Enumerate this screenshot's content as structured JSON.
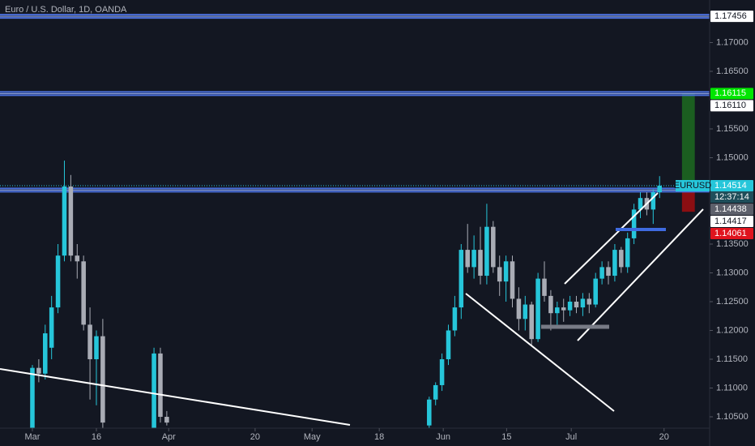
{
  "chart_data": {
    "type": "candlestick",
    "title": "Euro / U.S. Dollar, 1D, OANDA",
    "up_color": "#26c6da",
    "down_color": "#a9acb5",
    "x": [
      0,
      1,
      2,
      3,
      4,
      5,
      6,
      7,
      8,
      9,
      10,
      11,
      19,
      20,
      21,
      62,
      63,
      64,
      65,
      66,
      67,
      68,
      69,
      70,
      71,
      72,
      73,
      74,
      75,
      76,
      77,
      78,
      79,
      80,
      81,
      82,
      83,
      84,
      85,
      86,
      87,
      88,
      89,
      90,
      91,
      92,
      93,
      94,
      95,
      96,
      97,
      98
    ],
    "open": [
      1.103,
      1.1135,
      1.1125,
      1.117,
      1.124,
      1.133,
      1.145,
      1.133,
      1.132,
      1.121,
      1.115,
      1.119,
      1.103,
      1.116,
      1.105,
      1.1035,
      1.108,
      1.1105,
      1.115,
      1.12,
      1.124,
      1.134,
      1.131,
      1.134,
      1.1295,
      1.138,
      1.131,
      1.1285,
      1.132,
      1.1255,
      1.122,
      1.1245,
      1.1185,
      1.129,
      1.126,
      1.123,
      1.124,
      1.1235,
      1.125,
      1.124,
      1.1255,
      1.1245,
      1.129,
      1.131,
      1.1295,
      1.134,
      1.131,
      1.136,
      1.141,
      1.143,
      1.141,
      1.144
    ],
    "high": [
      1.114,
      1.115,
      1.121,
      1.126,
      1.135,
      1.1495,
      1.147,
      1.135,
      1.133,
      1.124,
      1.12,
      1.122,
      1.117,
      1.117,
      1.106,
      1.1085,
      1.111,
      1.116,
      1.121,
      1.126,
      1.135,
      1.1385,
      1.1365,
      1.138,
      1.142,
      1.139,
      1.133,
      1.133,
      1.133,
      1.1275,
      1.126,
      1.125,
      1.13,
      1.132,
      1.127,
      1.125,
      1.1255,
      1.126,
      1.126,
      1.1265,
      1.1265,
      1.13,
      1.132,
      1.132,
      1.135,
      1.1345,
      1.137,
      1.142,
      1.144,
      1.144,
      1.1445,
      1.1468
    ],
    "low": [
      1.103,
      1.111,
      1.1115,
      1.115,
      1.123,
      1.132,
      1.132,
      1.129,
      1.12,
      1.108,
      1.107,
      1.103,
      1.103,
      1.104,
      1.1035,
      1.103,
      1.107,
      1.1095,
      1.114,
      1.119,
      1.122,
      1.13,
      1.129,
      1.128,
      1.128,
      1.13,
      1.126,
      1.125,
      1.124,
      1.12,
      1.12,
      1.1175,
      1.118,
      1.125,
      1.12,
      1.121,
      1.1215,
      1.1225,
      1.123,
      1.1225,
      1.123,
      1.124,
      1.128,
      1.128,
      1.1285,
      1.13,
      1.13,
      1.135,
      1.1395,
      1.14,
      1.1385,
      1.143
    ],
    "close": [
      1.1135,
      1.1125,
      1.1195,
      1.124,
      1.133,
      1.145,
      1.133,
      1.132,
      1.121,
      1.115,
      1.119,
      1.104,
      1.116,
      1.105,
      1.104,
      1.108,
      1.1105,
      1.115,
      1.12,
      1.124,
      1.134,
      1.131,
      1.134,
      1.1295,
      1.138,
      1.131,
      1.1285,
      1.132,
      1.1255,
      1.122,
      1.1245,
      1.1185,
      1.129,
      1.126,
      1.123,
      1.124,
      1.1235,
      1.125,
      1.124,
      1.1255,
      1.1245,
      1.129,
      1.131,
      1.1295,
      1.134,
      1.131,
      1.136,
      1.141,
      1.143,
      1.141,
      1.144,
      1.14514
    ],
    "xlim": [
      -5.06,
      105.82
    ],
    "xticks": [
      {
        "value": 0,
        "label": "Mar"
      },
      {
        "value": 10,
        "label": "16"
      },
      {
        "value": 21.3,
        "label": "Apr"
      },
      {
        "value": 34.8,
        "label": "20"
      },
      {
        "value": 43.7,
        "label": "May"
      },
      {
        "value": 54.2,
        "label": "18"
      },
      {
        "value": 64.2,
        "label": "Jun"
      },
      {
        "value": 74.1,
        "label": "15"
      },
      {
        "value": 84.2,
        "label": "Jul"
      },
      {
        "value": 98.7,
        "label": "20"
      }
    ],
    "ylim": [
      1.10303,
      1.17739
    ],
    "yticks": [
      {
        "value": 1.105,
        "label": "1.10500"
      },
      {
        "value": 1.11,
        "label": "1.11000"
      },
      {
        "value": 1.115,
        "label": "1.11500"
      },
      {
        "value": 1.12,
        "label": "1.12000"
      },
      {
        "value": 1.125,
        "label": "1.12500"
      },
      {
        "value": 1.13,
        "label": "1.13000"
      },
      {
        "value": 1.135,
        "label": "1.13500"
      },
      {
        "value": 1.15,
        "label": "1.15000"
      },
      {
        "value": 1.155,
        "label": "1.15500"
      },
      {
        "value": 1.165,
        "label": "1.16500"
      },
      {
        "value": 1.17,
        "label": "1.17000"
      }
    ],
    "price_tags": [
      {
        "value": 1.17456,
        "color": "#ffffff",
        "line": true
      },
      {
        "value": 1.16115,
        "color": "#00e600",
        "line": true
      },
      {
        "value": 1.1611,
        "label": "1.16110",
        "color": "#ffffff"
      },
      {
        "name": "EURUSD",
        "value": 1.14514,
        "color": "#26c6da",
        "countdown": "12:37:14"
      },
      {
        "value": 1.14438,
        "color": "#5d606b",
        "line": true
      },
      {
        "value": 1.14417,
        "color": "#ffffff"
      },
      {
        "value": 1.14061,
        "color": "#e0141e"
      }
    ],
    "level_color": "#4a6fdc",
    "position": {
      "x": [
        101.5,
        103.5
      ],
      "entry": 1.14438,
      "target": 1.16115,
      "stop": 1.14061,
      "profit_color": "#1b5e20",
      "loss_color": "#8b0e12"
    }
  }
}
